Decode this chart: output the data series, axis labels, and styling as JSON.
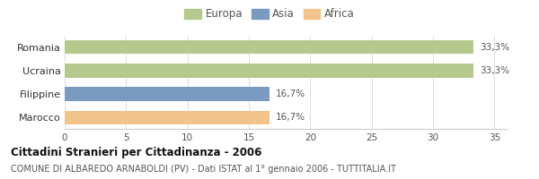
{
  "categories": [
    "Romania",
    "Ucraina",
    "Filippine",
    "Marocco"
  ],
  "values": [
    33.3,
    33.3,
    16.7,
    16.7
  ],
  "labels": [
    "33,3%",
    "33,3%",
    "16,7%",
    "16,7%"
  ],
  "colors": [
    "#b5c98e",
    "#b5c98e",
    "#7a9bbf",
    "#f0c48a"
  ],
  "legend": [
    {
      "label": "Europa",
      "color": "#b5c98e"
    },
    {
      "label": "Asia",
      "color": "#7a9bbf"
    },
    {
      "label": "Africa",
      "color": "#f0c48a"
    }
  ],
  "xlim": [
    0,
    36
  ],
  "xticks": [
    0,
    5,
    10,
    15,
    20,
    25,
    30,
    35
  ],
  "title": "Cittadini Stranieri per Cittadinanza - 2006",
  "subtitle": "COMUNE DI ALBAREDO ARNABOLDI (PV) - Dati ISTAT al 1° gennaio 2006 - TUTTITALIA.IT",
  "bg_color": "#ffffff",
  "bar_height": 0.6,
  "label_fontsize": 7.5,
  "tick_fontsize": 7.5,
  "ytick_fontsize": 8,
  "title_fontsize": 8.5,
  "subtitle_fontsize": 7
}
